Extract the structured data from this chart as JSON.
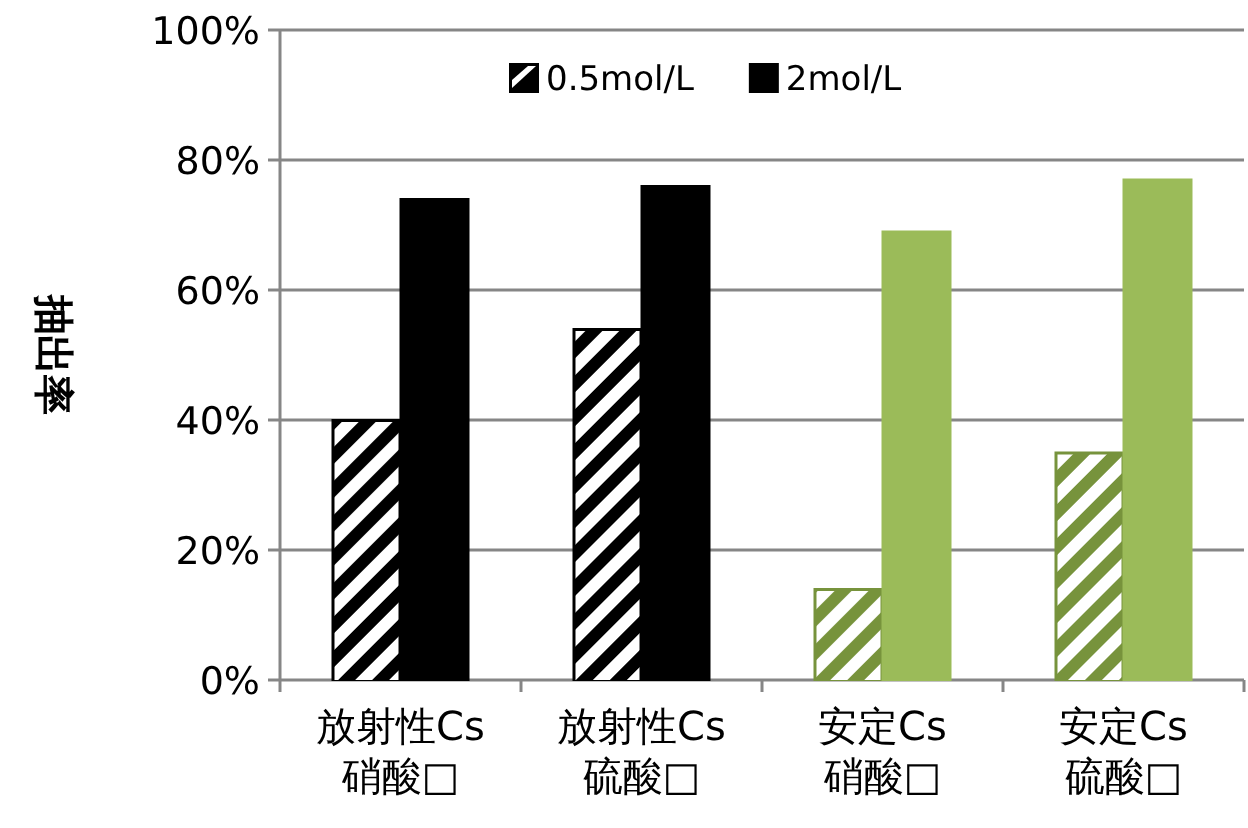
{
  "chart_data": {
    "type": "bar",
    "ylabel": "抽出率",
    "categories": [
      "放射性Cs\n硝酸□",
      "放射性Cs\n硫酸□",
      "安定Cs\n硝酸□",
      "安定Cs\n硫酸□"
    ],
    "series": [
      {
        "name": "0.5mol/L",
        "colors": [
          "#000000",
          "#000000",
          "#77933c",
          "#77933c"
        ],
        "values": [
          40,
          54,
          14,
          35
        ]
      },
      {
        "name": "2mol/L",
        "colors": [
          "#000000",
          "#000000",
          "#9bbb59",
          "#9bbb59"
        ],
        "values": [
          74,
          76,
          69,
          77
        ]
      }
    ],
    "ylim": [
      0,
      100
    ],
    "yticks": [
      {
        "value": 0,
        "label": "0%"
      },
      {
        "value": 20,
        "label": "20%"
      },
      {
        "value": 40,
        "label": "40%"
      },
      {
        "value": 60,
        "label": "60%"
      },
      {
        "value": 80,
        "label": "80%"
      },
      {
        "value": 100,
        "label": "100%"
      }
    ],
    "grid": "y",
    "legend": "top"
  }
}
